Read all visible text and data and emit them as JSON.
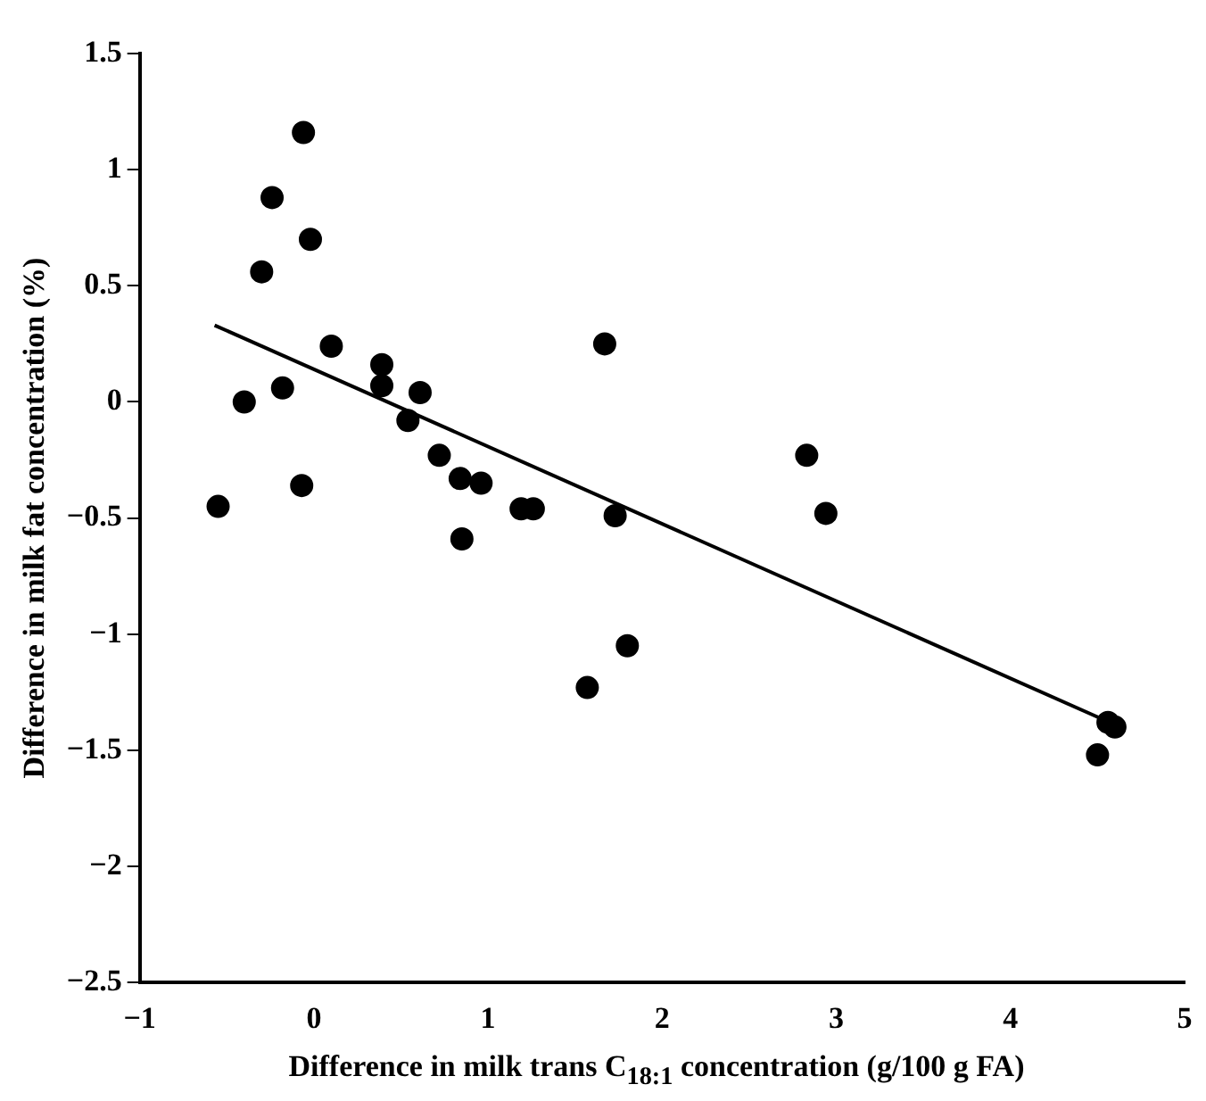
{
  "chart_data": {
    "type": "scatter",
    "xlabel": "Difference in milk trans C$_{18:1}$ concentration (g/100 g FA)",
    "ylabel": "Difference in milk fat concentration (%)",
    "xlim": [
      -1,
      5
    ],
    "xticks": [
      -1,
      0,
      1,
      2,
      3,
      4,
      5
    ],
    "ylim": [
      -2.5,
      1.5
    ],
    "yticks": [
      -2.5,
      -2,
      -1.5,
      -1,
      -0.5,
      0,
      0.5,
      1,
      1.5
    ],
    "grid": false,
    "legend": false,
    "marker": "circle",
    "series": [
      {
        "color": "#000000",
        "x": [
          -0.06,
          -0.24,
          -0.02,
          -0.3,
          0.1,
          0.39,
          0.39,
          0.61,
          -0.18,
          -0.4,
          0.54,
          0.72,
          0.84,
          0.96,
          -0.07,
          -0.55,
          0.85,
          1.19,
          1.26,
          1.73,
          1.67,
          2.83,
          2.94,
          1.8,
          1.57,
          4.56,
          4.6,
          4.5
        ],
        "values": [
          1.16,
          0.88,
          0.7,
          0.56,
          0.24,
          0.16,
          0.07,
          0.04,
          0.06,
          0.0,
          -0.08,
          -0.23,
          -0.33,
          -0.35,
          -0.36,
          -0.45,
          -0.59,
          -0.46,
          -0.46,
          -0.49,
          0.25,
          -0.23,
          -0.48,
          -1.05,
          -1.23,
          -1.38,
          -1.4,
          -1.52
        ]
      },
      {
        "type": "line",
        "color": "#000000",
        "marker": "none",
        "line_style": "solid",
        "x": [
          -0.57,
          4.6
        ],
        "values": [
          0.33,
          -1.39
        ]
      }
    ]
  }
}
